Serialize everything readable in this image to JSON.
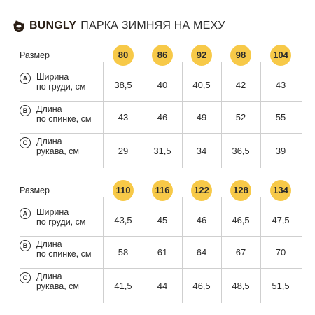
{
  "header": {
    "brand": "BUNGLY",
    "title": "ПАРКА ЗИМНЯЯ НА МЕХУ",
    "logo_icon": "bungly-logo-icon",
    "accent_color": "#f7c948"
  },
  "tables": [
    {
      "size_label": "Размер",
      "sizes": [
        "80",
        "86",
        "92",
        "98",
        "104"
      ],
      "rows": [
        {
          "letter": "A",
          "label_line1": "Ширина",
          "label_line2": "по груди, см",
          "values": [
            "38,5",
            "40",
            "40,5",
            "42",
            "43"
          ]
        },
        {
          "letter": "B",
          "label_line1": "Длина",
          "label_line2": "по спинке, см",
          "values": [
            "43",
            "46",
            "49",
            "52",
            "55"
          ]
        },
        {
          "letter": "C",
          "label_line1": "Длина",
          "label_line2": "рукава, см",
          "values": [
            "29",
            "31,5",
            "34",
            "36,5",
            "39"
          ]
        }
      ]
    },
    {
      "size_label": "Размер",
      "sizes": [
        "110",
        "116",
        "122",
        "128",
        "134"
      ],
      "rows": [
        {
          "letter": "A",
          "label_line1": "Ширина",
          "label_line2": "по груди, см",
          "values": [
            "43,5",
            "45",
            "46",
            "46,5",
            "47,5"
          ]
        },
        {
          "letter": "B",
          "label_line1": "Длина",
          "label_line2": "по спинке, см",
          "values": [
            "58",
            "61",
            "64",
            "67",
            "70"
          ]
        },
        {
          "letter": "C",
          "label_line1": "Длина",
          "label_line2": "рукава, см",
          "values": [
            "41,5",
            "44",
            "46,5",
            "48,5",
            "51,5"
          ]
        }
      ]
    }
  ]
}
